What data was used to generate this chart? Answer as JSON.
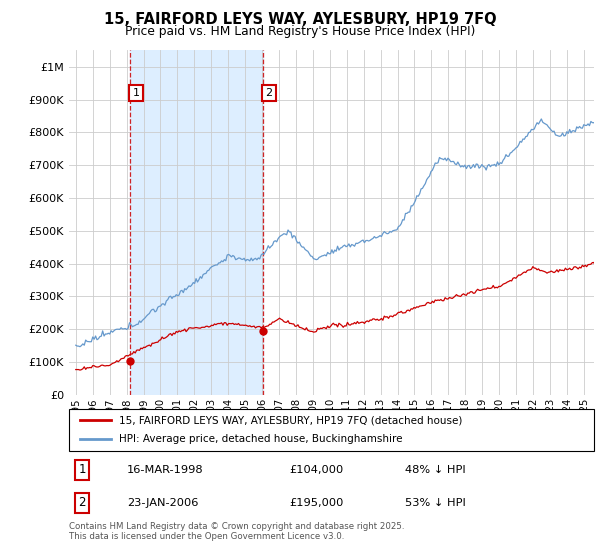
{
  "title": "15, FAIRFORD LEYS WAY, AYLESBURY, HP19 7FQ",
  "subtitle": "Price paid vs. HM Land Registry's House Price Index (HPI)",
  "legend_line1": "15, FAIRFORD LEYS WAY, AYLESBURY, HP19 7FQ (detached house)",
  "legend_line2": "HPI: Average price, detached house, Buckinghamshire",
  "footnote": "Contains HM Land Registry data © Crown copyright and database right 2025.\nThis data is licensed under the Open Government Licence v3.0.",
  "sale1_date": "16-MAR-1998",
  "sale1_price": 104000,
  "sale1_label_pct": "48% ↓ HPI",
  "sale2_date": "23-JAN-2006",
  "sale2_price": 195000,
  "sale2_label_pct": "53% ↓ HPI",
  "red_color": "#cc0000",
  "blue_color": "#6699cc",
  "shade_color": "#ddeeff",
  "background_color": "#ffffff",
  "grid_color": "#cccccc",
  "ylim": [
    0,
    1050000
  ],
  "yticks": [
    0,
    100000,
    200000,
    300000,
    400000,
    500000,
    600000,
    700000,
    800000,
    900000,
    1000000
  ],
  "sale1_x": 1998.21,
  "sale1_y": 104000,
  "sale2_x": 2006.05,
  "sale2_y": 195000,
  "xmin": 1995,
  "xmax": 2025
}
